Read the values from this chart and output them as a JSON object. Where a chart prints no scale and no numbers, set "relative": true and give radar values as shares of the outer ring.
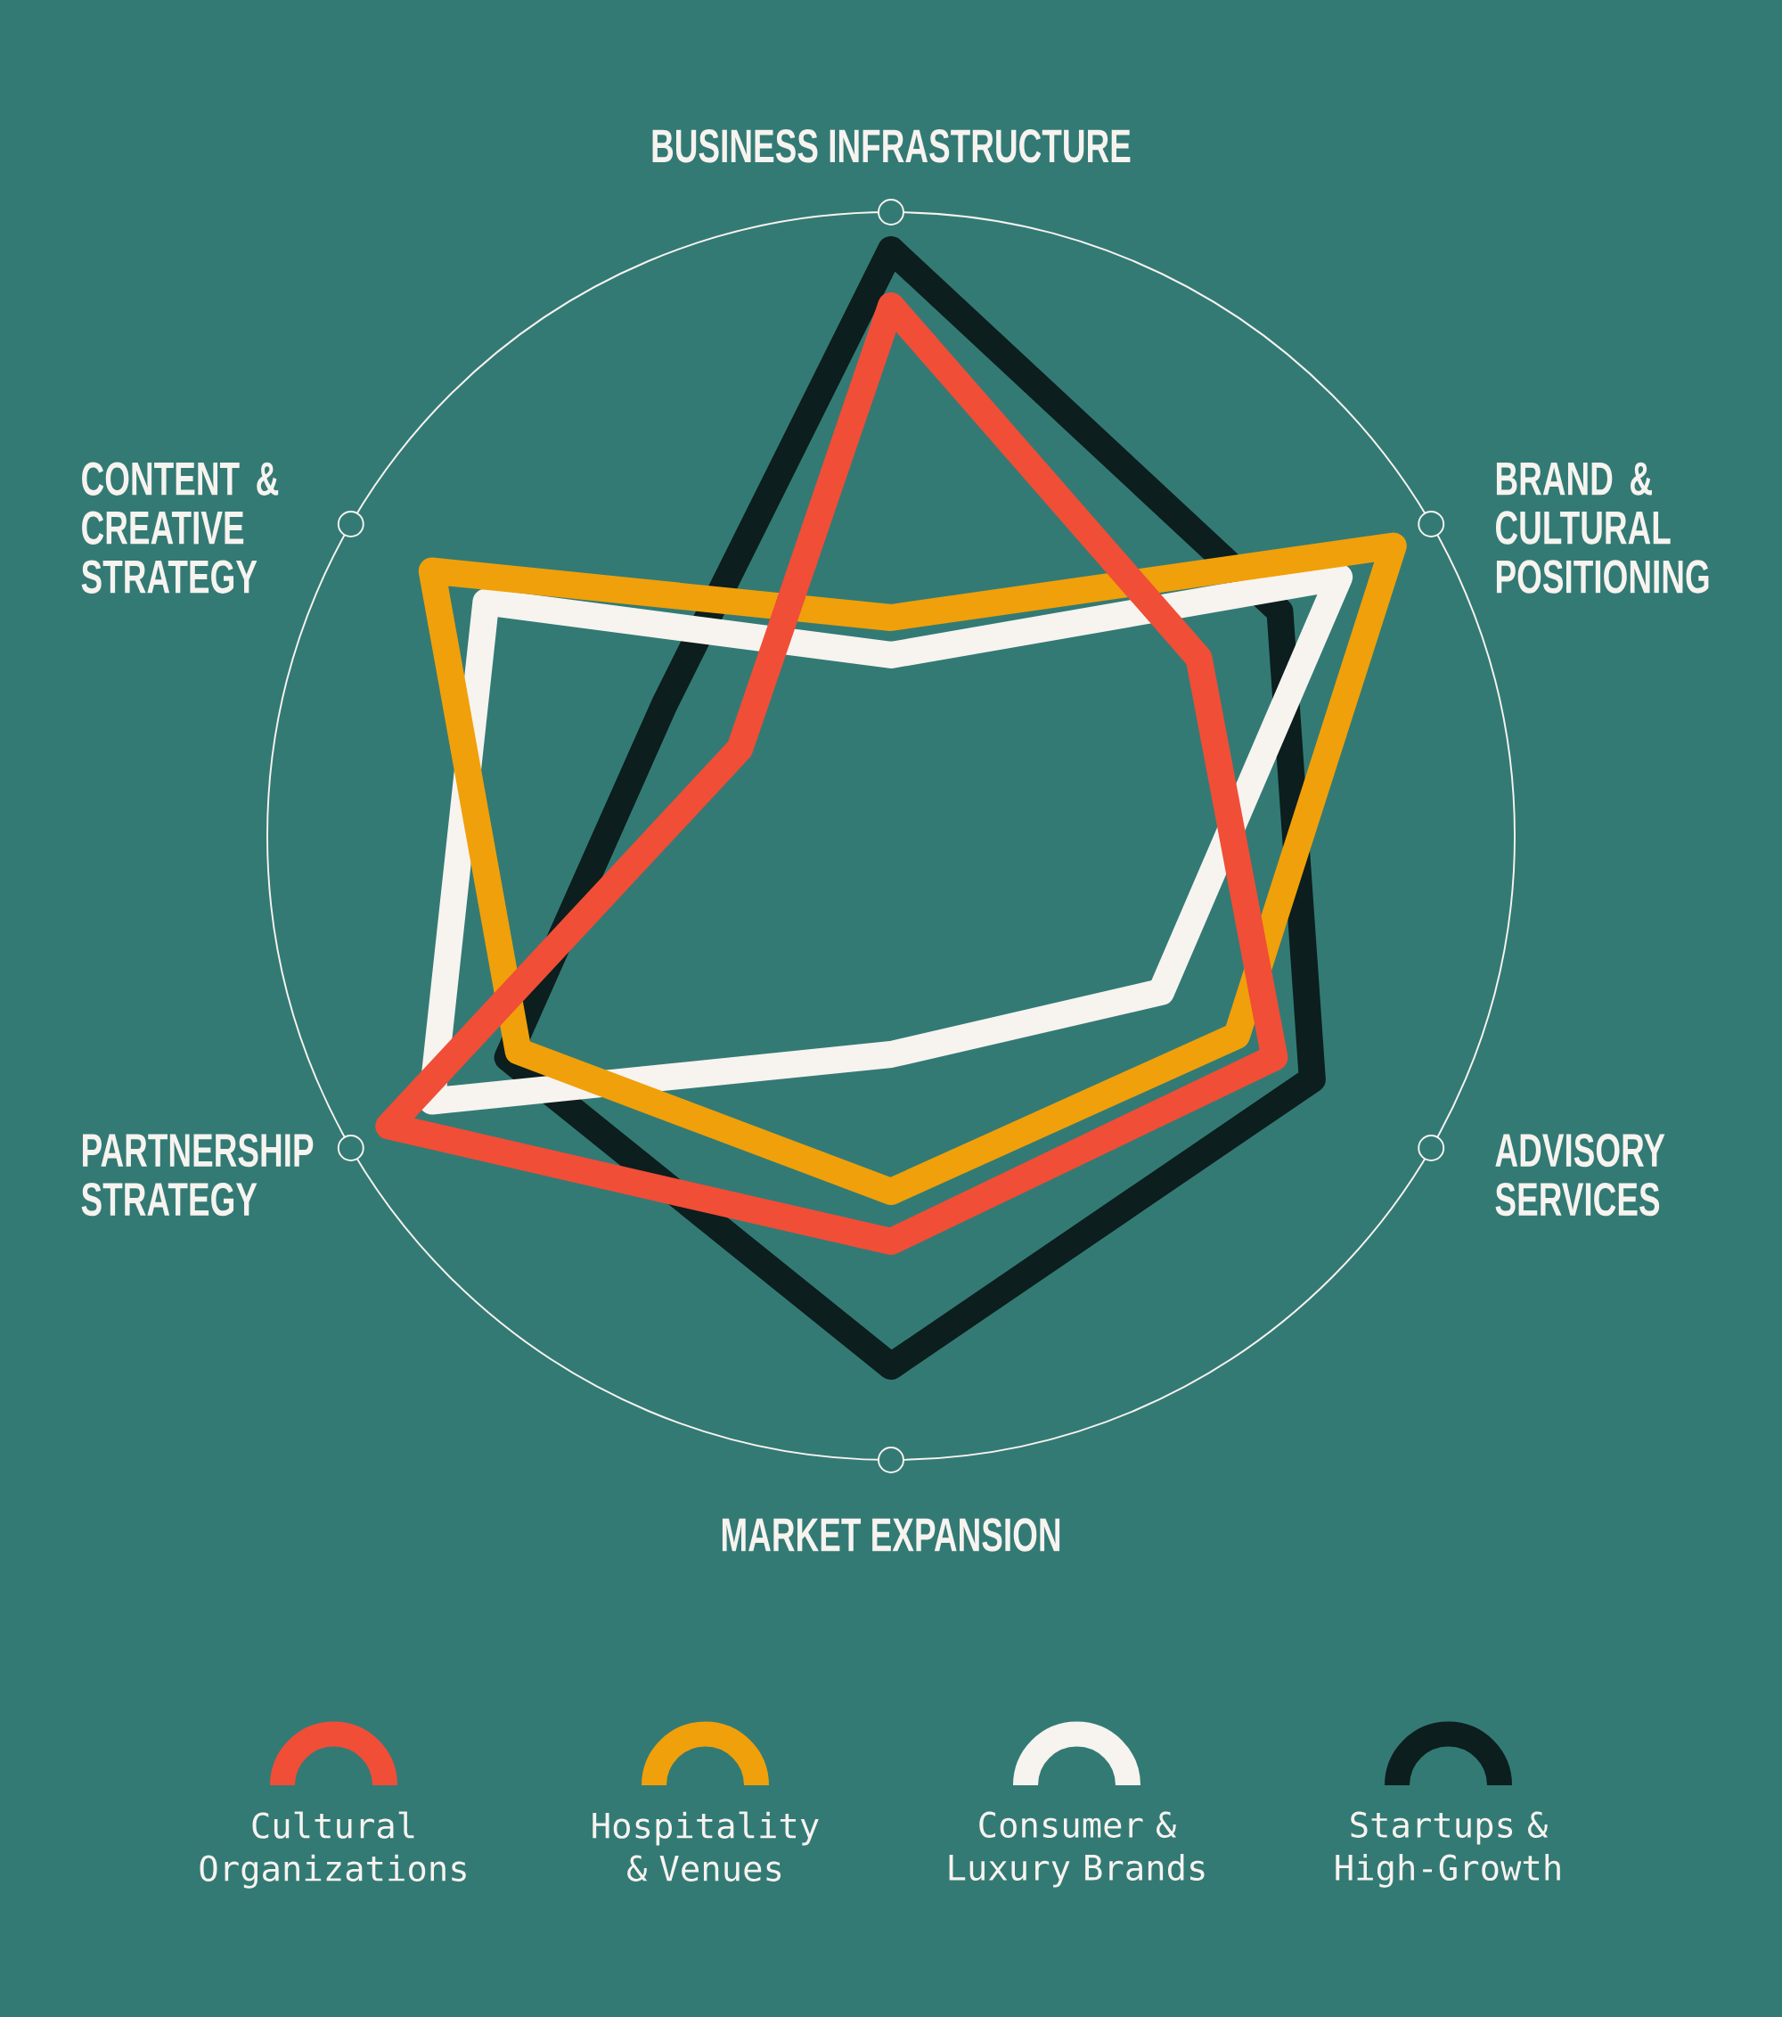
{
  "chart_data": {
    "type": "radar",
    "relative": true,
    "categories": [
      "BUSINESS INFRASTRUCTURE",
      "BRAND & CULTURAL POSITIONING",
      "ADVISORY SERVICES",
      "MARKET EXPANSION",
      "PARTNERSHIP STRATEGY",
      "CONTENT & CREATIVE STRATEGY"
    ],
    "series": [
      {
        "name": "Cultural Organizations",
        "color": "#f04e37",
        "values": [
          0.85,
          0.57,
          0.71,
          0.65,
          0.93,
          0.28
        ]
      },
      {
        "name": "Hospitality & Venues",
        "color": "#f0a00a",
        "values": [
          0.35,
          0.93,
          0.64,
          0.57,
          0.69,
          0.85
        ]
      },
      {
        "name": "Consumer & Luxury Brands",
        "color": "#f7f3ef",
        "values": [
          0.29,
          0.83,
          0.5,
          0.35,
          0.85,
          0.75
        ]
      },
      {
        "name": "Startups & High-Growth",
        "color": "#0c1e1d",
        "values": [
          0.94,
          0.72,
          0.78,
          0.85,
          0.71,
          0.42
        ]
      }
    ],
    "legend": "bottom"
  }
}
